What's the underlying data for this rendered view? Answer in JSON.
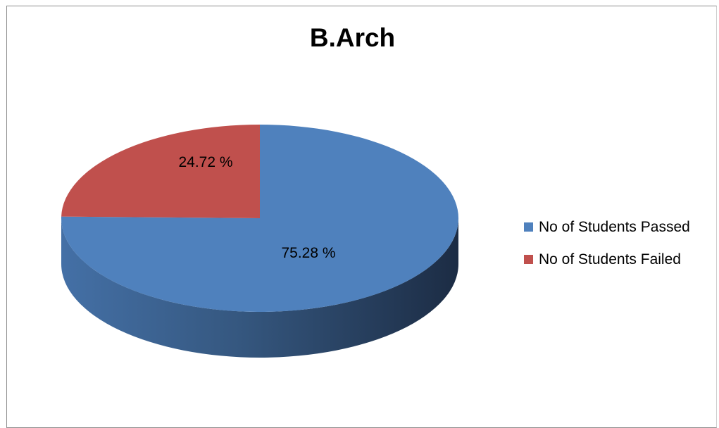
{
  "chart_data": {
    "type": "pie",
    "title": "B.Arch",
    "slices": [
      {
        "label": "No of Students Passed",
        "value": 75.28,
        "data_label": "75.28  %",
        "color": "#4F81BD"
      },
      {
        "label": "No of Students Failed",
        "value": 24.72,
        "data_label": "24.72 %",
        "color": "#C0504D"
      }
    ],
    "legend_position": "right",
    "style": "3d"
  }
}
